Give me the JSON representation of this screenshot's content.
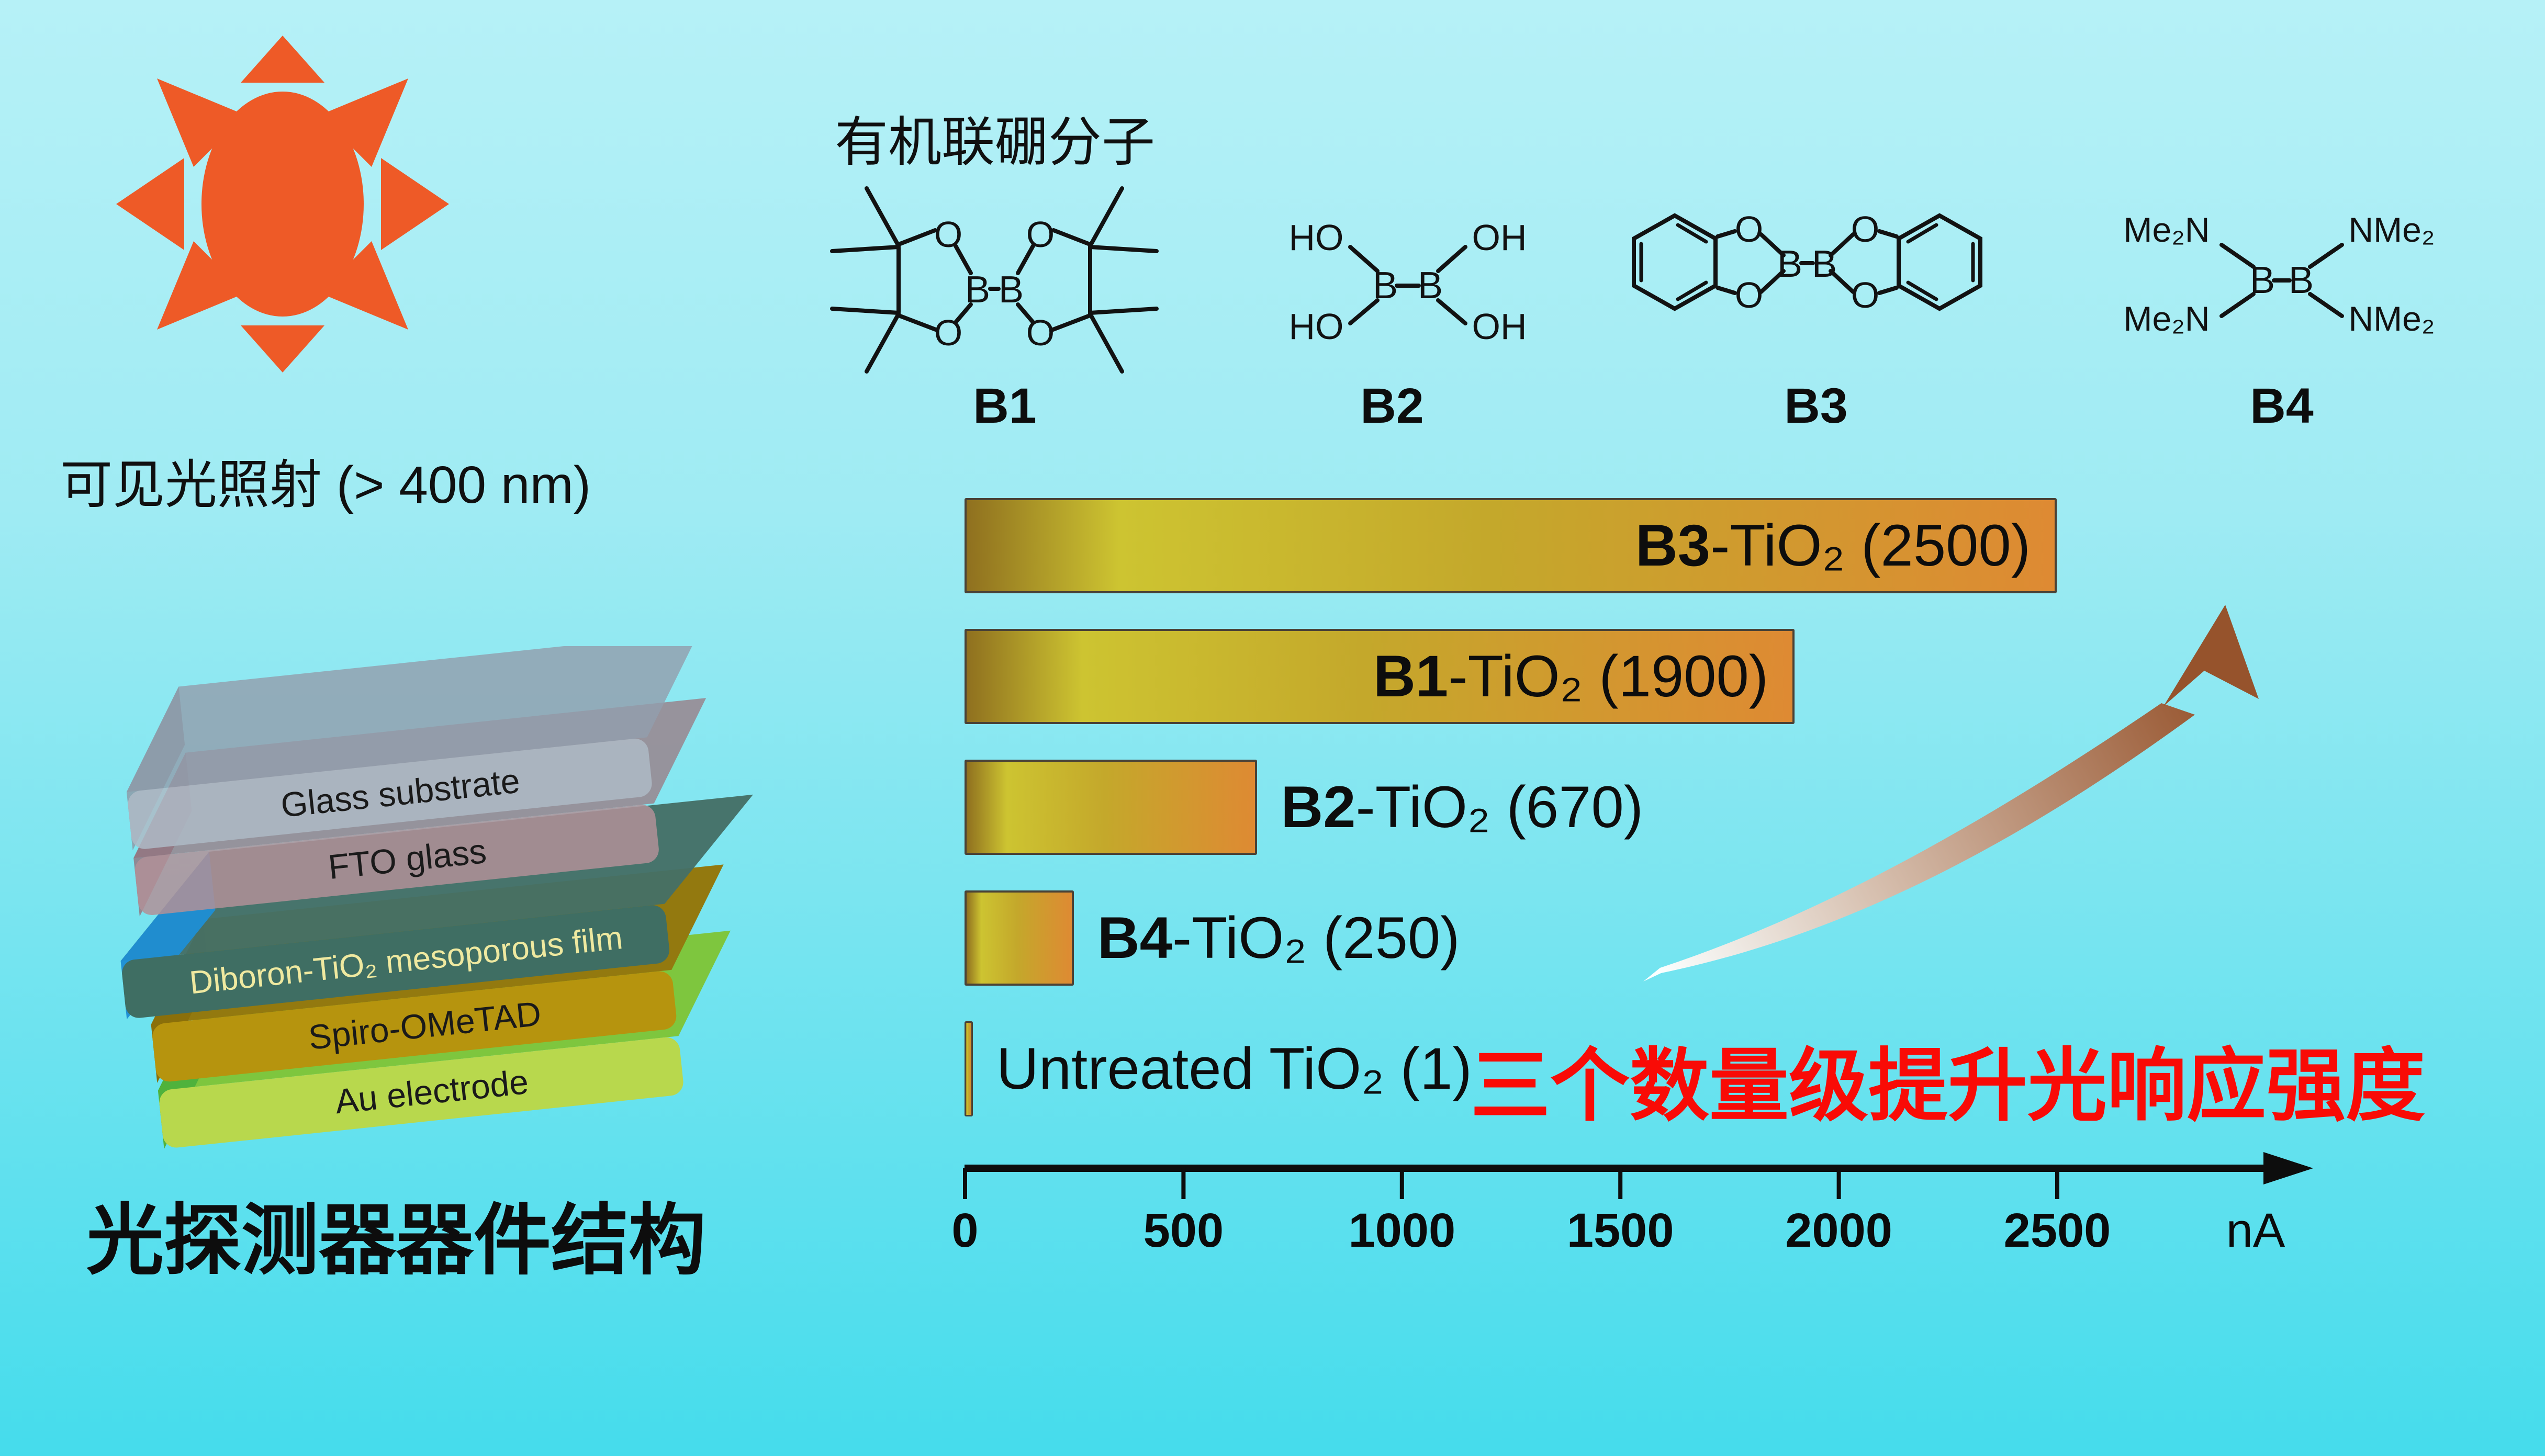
{
  "sun": {
    "caption": "可见光照射 (> 400 nm)",
    "color": "#EE5A27"
  },
  "molecules": {
    "title": "有机联硼分子",
    "b1": {
      "name": "B1",
      "atom_O": "O",
      "atom_B": "B"
    },
    "b2": {
      "name": "B2",
      "label_HO": "HO",
      "label_OH": "OH",
      "atom_B": "B"
    },
    "b3": {
      "name": "B3",
      "atom_O": "O",
      "atom_B": "B"
    },
    "b4": {
      "name": "B4",
      "label_Me2N": "Me₂N",
      "label_NMe2": "NMe₂",
      "atom_B": "B"
    }
  },
  "device": {
    "caption": "光探测器器件结构",
    "layers": [
      {
        "label": "Glass substrate",
        "front": "#AEBAC6",
        "top": "#939FAD",
        "side": "#8C98A6",
        "text_color": "#1A1A1A"
      },
      {
        "label": "FTO glass",
        "front": "#B19098",
        "top": "#9A8089",
        "side": "#93747F",
        "text_color": "#1A1A1A"
      },
      {
        "label": "Diboron-TiO₂ mesoporous film",
        "front": "#3F6E63",
        "top": "#456F66",
        "side": "#1E8FD3",
        "text_color": "#EFE9A0"
      },
      {
        "label": "Spiro-OMeTAD",
        "front": "#B6940E",
        "top": "#93790F",
        "side": "#8A6F0A",
        "text_color": "#1A1A1A"
      },
      {
        "label": "Au electrode",
        "front": "#B8D84D",
        "top": "#7EC63E",
        "side": "#4FB23C",
        "text_color": "#1A1A1A"
      }
    ]
  },
  "chart_data": {
    "type": "bar",
    "orientation": "horizontal",
    "categories": [
      "B3-TiO₂",
      "B1-TiO₂",
      "B2-TiO₂",
      "B4-TiO₂",
      "Untreated TiO₂"
    ],
    "values": [
      2500,
      1900,
      670,
      250,
      1
    ],
    "bars": [
      {
        "prefix": "B3",
        "rest": "-TiO₂ (2500)",
        "value": 2500,
        "label_inside": true
      },
      {
        "prefix": "B1",
        "rest": "-TiO₂ (1900)",
        "value": 1900,
        "label_inside": true
      },
      {
        "prefix": "B2",
        "rest": "-TiO₂ (670)",
        "value": 670,
        "label_inside": false
      },
      {
        "prefix": "B4",
        "rest": "-TiO₂ (250)",
        "value": 250,
        "label_inside": false
      },
      {
        "prefix": "",
        "rest": "Untreated TiO₂ (1)",
        "value": 1,
        "label_inside": false
      }
    ],
    "x_ticks": [
      0,
      500,
      1000,
      1500,
      2000,
      2500
    ],
    "x_axis_unit": "nA",
    "xlim": [
      0,
      2600
    ],
    "grid": false,
    "bar_gradient": [
      "#8F701F",
      "#CDC431",
      "#C4A82B",
      "#DE8A33"
    ],
    "bar_border_color": "#4A4236",
    "annotation": "三个数量级提升光响应强度",
    "annotation_color": "#F90B06"
  },
  "arrow": {
    "tail_color": "#FBFFFF",
    "mid_color": "#D8C2B2",
    "head_color": "#96532C"
  }
}
